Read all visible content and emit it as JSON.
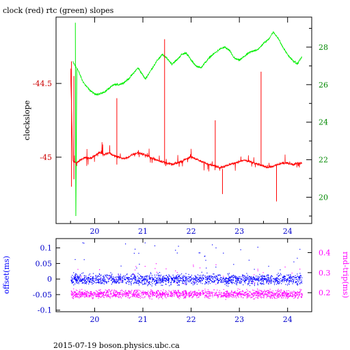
{
  "page_title": "clock (red) rtc (green) slopes",
  "footer": "2015-07-19 boson.physics.ubc.ca",
  "colors": {
    "clock": "#ff0000",
    "rtc": "#00ee00",
    "offset": "#0000ff",
    "rndtrip": "#ff00ff",
    "axis": "#000000"
  },
  "chart_data": [
    {
      "type": "line",
      "ylabel": "clockslope",
      "y2label": "",
      "xlim": [
        19.2,
        24.5
      ],
      "xticks": [
        20,
        21,
        22,
        23,
        24
      ],
      "xtick_labels": [
        "20",
        "21",
        "22",
        "23",
        "24"
      ],
      "ylim": [
        -45.45,
        -44.05
      ],
      "yticks": [
        -44.5,
        -45
      ],
      "ytick_labels": [
        "-44.5",
        "-45"
      ],
      "y2lim": [
        18.6,
        29.6
      ],
      "y2ticks": [
        20,
        22,
        24,
        26,
        28
      ],
      "y2tick_labels": [
        "20",
        "22",
        "24",
        "26",
        "28"
      ],
      "series": [
        {
          "axis": "left",
          "color": "#ff0000",
          "x": [
            19.5,
            19.55,
            19.62,
            19.7,
            19.8,
            19.9,
            20.0,
            20.1,
            20.2,
            20.3,
            20.4,
            20.5,
            20.6,
            20.7,
            20.8,
            20.9,
            21.0,
            21.1,
            21.2,
            21.3,
            21.4,
            21.5,
            21.6,
            21.7,
            21.8,
            21.9,
            22.0,
            22.1,
            22.2,
            22.3,
            22.4,
            22.5,
            22.6,
            22.7,
            22.8,
            22.9,
            23.0,
            23.1,
            23.2,
            23.3,
            23.4,
            23.5,
            23.6,
            23.7,
            23.8,
            23.9,
            24.0,
            24.1,
            24.2,
            24.3
          ],
          "values": [
            -44.4,
            -45.03,
            -45.04,
            -45.02,
            -45.0,
            -45.01,
            -44.99,
            -44.97,
            -44.98,
            -44.97,
            -44.99,
            -45.0,
            -45.01,
            -45.0,
            -44.98,
            -44.97,
            -44.98,
            -44.99,
            -45.01,
            -45.02,
            -45.03,
            -45.04,
            -45.05,
            -45.04,
            -45.03,
            -45.01,
            -45.0,
            -45.01,
            -45.03,
            -45.04,
            -45.05,
            -45.06,
            -45.07,
            -45.06,
            -45.05,
            -45.04,
            -45.03,
            -45.02,
            -45.03,
            -45.04,
            -45.05,
            -45.06,
            -45.07,
            -45.06,
            -45.05,
            -45.04,
            -45.04,
            -45.05,
            -45.04,
            -45.04
          ]
        },
        {
          "axis": "right",
          "color": "#00ee00",
          "x": [
            19.55,
            19.6,
            19.65,
            19.7,
            19.75,
            19.8,
            19.9,
            20.0,
            20.1,
            20.2,
            20.3,
            20.4,
            20.5,
            20.6,
            20.7,
            20.8,
            20.9,
            21.0,
            21.05,
            21.1,
            21.2,
            21.3,
            21.4,
            21.5,
            21.6,
            21.7,
            21.8,
            21.9,
            22.0,
            22.1,
            22.2,
            22.3,
            22.4,
            22.5,
            22.6,
            22.7,
            22.8,
            22.9,
            23.0,
            23.1,
            23.2,
            23.3,
            23.4,
            23.5,
            23.6,
            23.7,
            23.8,
            23.9,
            24.0,
            24.1,
            24.2,
            24.3
          ],
          "values": [
            27.2,
            27.0,
            26.8,
            26.5,
            26.2,
            26.0,
            25.7,
            25.5,
            25.5,
            25.6,
            25.8,
            26.0,
            26.0,
            26.1,
            26.3,
            26.6,
            26.9,
            26.5,
            26.3,
            26.5,
            26.9,
            27.3,
            27.6,
            27.4,
            27.1,
            27.3,
            27.6,
            27.7,
            27.3,
            27.0,
            26.9,
            27.2,
            27.5,
            27.7,
            27.9,
            28.0,
            27.8,
            27.4,
            27.3,
            27.5,
            27.7,
            27.8,
            27.9,
            28.2,
            28.4,
            28.8,
            28.5,
            28.0,
            27.6,
            27.3,
            27.1,
            27.5
          ]
        }
      ],
      "spikes": [
        {
          "x": 19.52,
          "values": [
            -44.35,
            -45.2
          ]
        },
        {
          "x": 19.57,
          "values": [
            -44.45,
            -45.15
          ]
        },
        {
          "x": 20.46,
          "values": [
            -44.6,
            -45.05
          ]
        },
        {
          "x": 21.45,
          "values": [
            -44.2,
            -45.05
          ]
        },
        {
          "x": 22.5,
          "values": [
            -44.75,
            -45.05
          ]
        },
        {
          "x": 22.65,
          "values": [
            -45.08,
            -45.25
          ]
        },
        {
          "x": 23.45,
          "values": [
            -44.42,
            -45.05
          ]
        },
        {
          "x": 23.77,
          "values": [
            -45.05,
            -45.3
          ]
        }
      ]
    },
    {
      "type": "scatter",
      "ylabel": "offset(ms)",
      "y2label": "rnd-trip(ms)",
      "xlim": [
        19.2,
        24.5
      ],
      "xticks": [
        20,
        21,
        22,
        23,
        24
      ],
      "xtick_labels": [
        "20",
        "21",
        "22",
        "23",
        "24"
      ],
      "ylim": [
        -0.105,
        0.13
      ],
      "yticks": [
        0.1,
        0.05,
        0,
        -0.05,
        -0.1
      ],
      "ytick_labels": [
        "0.1",
        "0.05",
        "0",
        "-0.05",
        "-0.1"
      ],
      "y2lim": [
        0.105,
        0.47
      ],
      "y2ticks": [
        0.2,
        0.3,
        0.4
      ],
      "y2tick_labels": [
        "0.2",
        "0.3",
        "0.4"
      ],
      "series": [
        {
          "axis": "left",
          "color": "#0000ff",
          "x_range": [
            19.5,
            24.3
          ],
          "center": 0.0,
          "spread": 0.025
        },
        {
          "axis": "right",
          "color": "#ff00ff",
          "x_range": [
            19.5,
            24.3
          ],
          "center": 0.195,
          "spread": 0.03
        }
      ]
    }
  ]
}
